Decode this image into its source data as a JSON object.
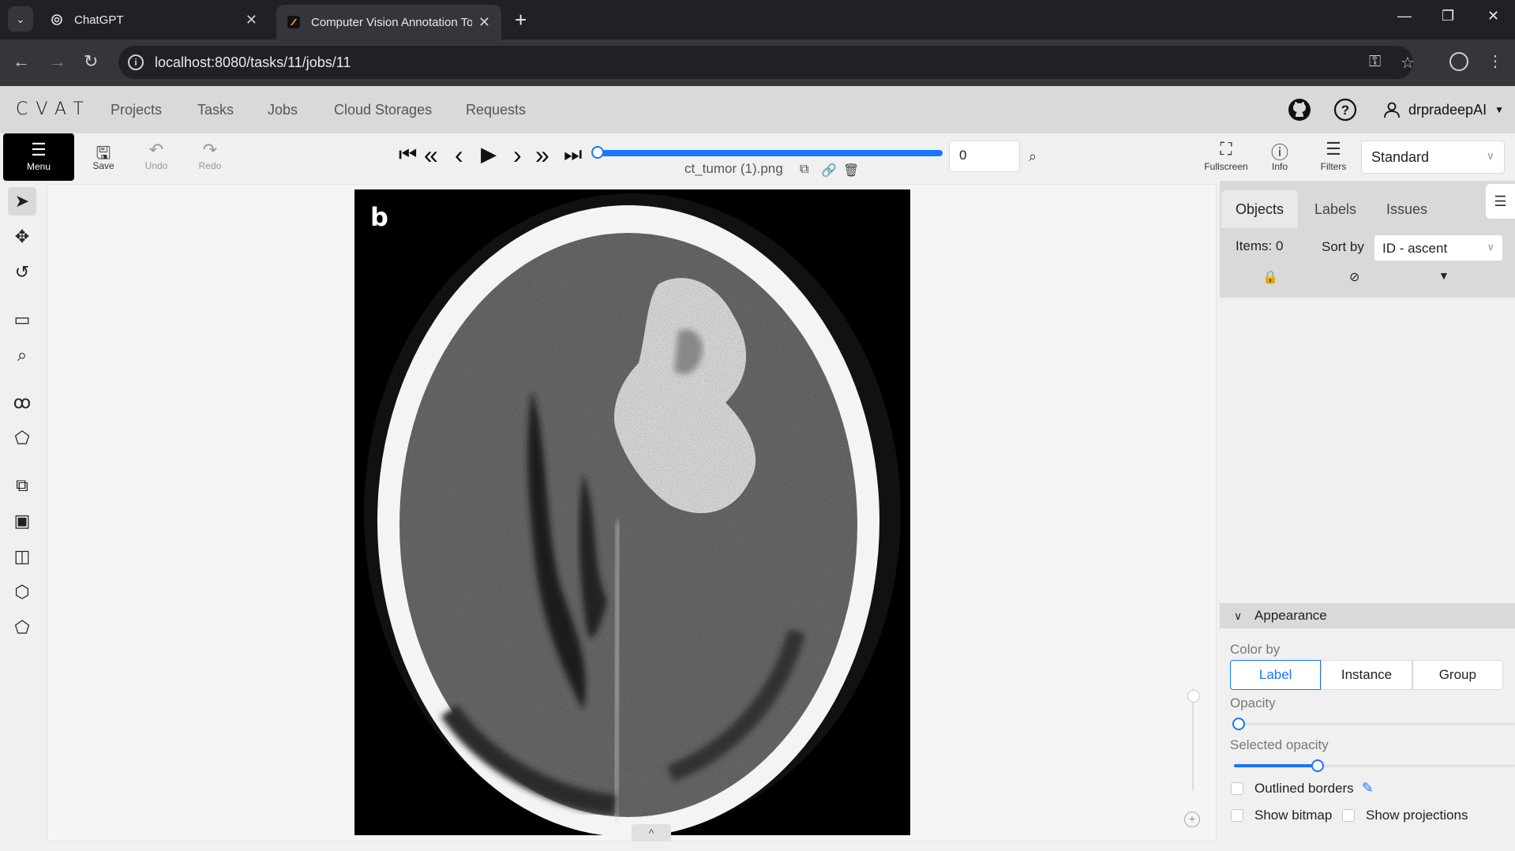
{
  "browser": {
    "tabs": [
      {
        "title": "ChatGPT",
        "active": false
      },
      {
        "title": "Computer Vision Annotation To",
        "active": true
      }
    ],
    "url": "localhost:8080/tasks/11/jobs/11"
  },
  "header": {
    "logo": "CVAT",
    "nav": [
      "Projects",
      "Tasks",
      "Jobs",
      "Cloud Storages",
      "Requests"
    ],
    "username": "drpradeepAI"
  },
  "toolbar": {
    "menu_label": "Menu",
    "save_label": "Save",
    "undo_label": "Undo",
    "redo_label": "Redo",
    "filename": "ct_tumor (1).png",
    "frame_value": "0",
    "frame_progress": 0,
    "fullscreen_label": "Fullscreen",
    "info_label": "Info",
    "filters_label": "Filters",
    "workspace": "Standard"
  },
  "canvas": {
    "image_panel_label": "b"
  },
  "sidebar": {
    "tabs": [
      "Objects",
      "Labels",
      "Issues"
    ],
    "items_label": "Items: 0",
    "sort_label": "Sort by",
    "sort_value": "ID - ascent",
    "appearance_title": "Appearance",
    "color_by_label": "Color by",
    "color_by_options": [
      "Label",
      "Instance",
      "Group"
    ],
    "color_by_selected": "Label",
    "opacity_label": "Opacity",
    "opacity_value": 0,
    "selected_opacity_label": "Selected opacity",
    "selected_opacity_value": 30,
    "outlined_borders_label": "Outlined borders",
    "show_bitmap_label": "Show bitmap",
    "show_projections_label": "Show projections"
  },
  "colors": {
    "accent": "#1677ff",
    "browser_dark": "#202124",
    "header_gray": "#d9d9d9"
  }
}
